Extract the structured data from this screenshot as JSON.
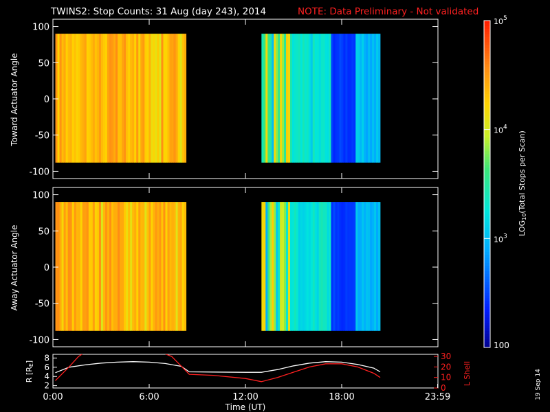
{
  "title": "TWINS2: Stop Counts: 31 Aug (day 243), 2014",
  "note": "NOTE: Data Preliminary - Not validated",
  "date_stamp": "19 Sep 14",
  "colors": {
    "background": "#000000",
    "foreground": "#ffffff",
    "note": "#ff2020",
    "lshell": "#ff2020",
    "radius": "#ffffff"
  },
  "chart_data": [
    {
      "type": "heatmap",
      "panel": "top",
      "ylabel": "Toward Actuator Angle",
      "ylim": [
        -110,
        110
      ],
      "y_ticks": [
        "100",
        "50",
        "0",
        "-50",
        "-100"
      ],
      "y_tick_values": [
        100,
        50,
        0,
        -50,
        -100
      ],
      "xlim": [
        0,
        24
      ],
      "x_units": "hours UT",
      "data_extent_y": [
        -88,
        90
      ],
      "segments": [
        {
          "x_start": 0.15,
          "x_end": 8.3,
          "mean_log10_counts": 4.6
        },
        {
          "x_start": 13.0,
          "x_end": 20.4,
          "mean_log10_counts": 3.6
        }
      ]
    },
    {
      "type": "heatmap",
      "panel": "middle",
      "ylabel": "Away Actuator Angle",
      "ylim": [
        -110,
        110
      ],
      "y_ticks": [
        "100",
        "50",
        "0",
        "-50",
        "-100"
      ],
      "y_tick_values": [
        100,
        50,
        0,
        -50,
        -100
      ],
      "xlim": [
        0,
        24
      ],
      "x_units": "hours UT",
      "data_extent_y": [
        -88,
        90
      ],
      "segments": [
        {
          "x_start": 0.15,
          "x_end": 8.3,
          "mean_log10_counts": 4.6
        },
        {
          "x_start": 13.0,
          "x_end": 20.4,
          "mean_log10_counts": 3.6
        }
      ]
    },
    {
      "type": "line",
      "panel": "bottom",
      "ylabel_left": "R [R",
      "ylabel_left_sub": "E",
      "ylabel_left_end": "]",
      "ylabel_right": "L Shell",
      "xlabel": "Time (UT)",
      "x_ticks": [
        "0:00",
        "6:00",
        "12:00",
        "18:00",
        "23:59"
      ],
      "x_tick_values": [
        0,
        6,
        12,
        18,
        23.98
      ],
      "xlim": [
        0,
        24
      ],
      "y_left_ticks": [
        "8",
        "6",
        "4",
        "2"
      ],
      "y_left_tick_values": [
        8,
        6,
        4,
        2
      ],
      "y_left_lim": [
        1.5,
        8.8
      ],
      "y_right_ticks": [
        "30",
        "20",
        "10",
        "0"
      ],
      "y_right_tick_values": [
        30,
        20,
        10,
        0
      ],
      "y_right_lim": [
        0,
        32
      ],
      "series": [
        {
          "axis": "left",
          "x": [
            0.15,
            1,
            2,
            3,
            4,
            5,
            6,
            7,
            8,
            8.5,
            10,
            12,
            13,
            14,
            15,
            16,
            17,
            18,
            19,
            20,
            20.4
          ],
          "y": [
            4.8,
            6.0,
            6.5,
            6.9,
            7.1,
            7.2,
            7.1,
            6.8,
            6.2,
            5.0,
            4.95,
            4.9,
            4.9,
            5.5,
            6.3,
            6.9,
            7.2,
            7.1,
            6.6,
            5.8,
            5.0
          ]
        },
        {
          "axis": "right",
          "x": [
            0.15,
            1,
            1.6,
            1.9,
            6.9,
            7.4,
            8.5,
            10,
            12,
            13,
            14,
            15,
            16,
            17,
            18,
            19,
            20,
            20.4
          ],
          "y": [
            7,
            20,
            30,
            33,
            33,
            30,
            13,
            12,
            9,
            6,
            10,
            15,
            20,
            23,
            23,
            20,
            14,
            10
          ]
        }
      ]
    }
  ],
  "colorbar": {
    "label_main": "LOG",
    "label_sub": "10",
    "label_end": "(Total Stops per Scan)",
    "range_log10": [
      2,
      5
    ],
    "tick_labels": [
      {
        "base": "10",
        "exp": "5",
        "value": 5
      },
      {
        "base": "10",
        "exp": "4",
        "value": 4
      },
      {
        "base": "10",
        "exp": "3",
        "value": 3
      }
    ],
    "bottom_label": "100",
    "bottom_value": 2
  }
}
